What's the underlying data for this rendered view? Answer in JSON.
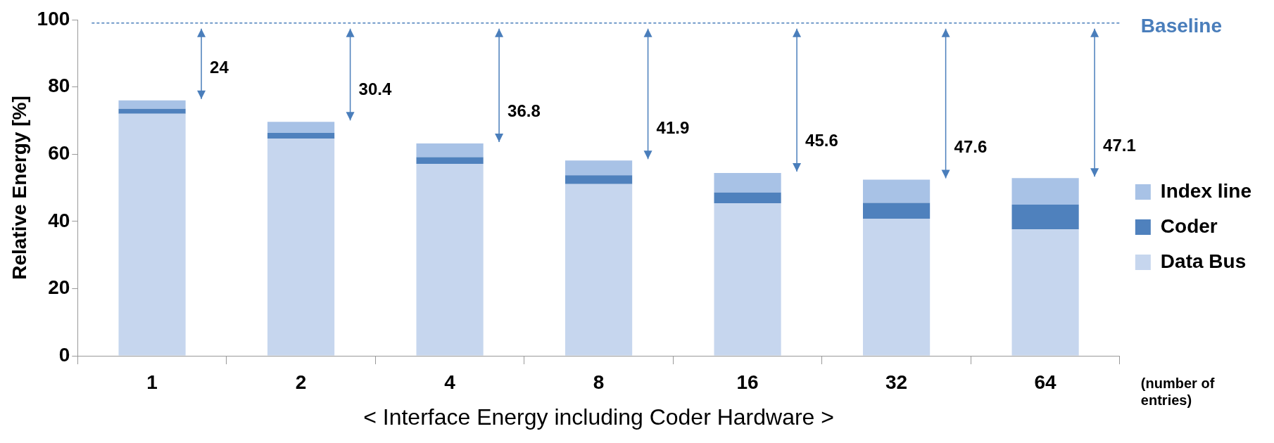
{
  "chart_data": {
    "type": "bar",
    "stacked": true,
    "xlabel": "< Interface Energy including Coder Hardware >",
    "ylabel": "Relative Energy [%]",
    "categories": [
      "1",
      "2",
      "4",
      "8",
      "16",
      "32",
      "64"
    ],
    "series": [
      {
        "name": "Data Bus",
        "color": "#c6d6ee",
        "values": [
          72,
          64.6,
          57.1,
          51.1,
          45.4,
          40.8,
          37.6
        ]
      },
      {
        "name": "Coder",
        "color": "#4f81bd",
        "values": [
          1.5,
          1.7,
          2.0,
          2.6,
          3.2,
          4.7,
          7.4
        ]
      },
      {
        "name": "Index line",
        "color": "#a8c2e6",
        "values": [
          2.5,
          3.3,
          4.1,
          4.4,
          5.8,
          6.9,
          7.9
        ]
      }
    ],
    "ylim": [
      0,
      100
    ],
    "yticks": [
      0,
      20,
      40,
      60,
      80,
      100
    ],
    "grid": false,
    "legend": "right",
    "ref_lines": [
      {
        "axis": "y",
        "value": 99,
        "label": "Baseline",
        "color": "#4a7ebb",
        "line_style": "dashed"
      }
    ],
    "annotations": [
      "24",
      "30.4",
      "36.8",
      "41.9",
      "45.6",
      "47.6",
      "47.1",
      "(number of entries)"
    ]
  }
}
